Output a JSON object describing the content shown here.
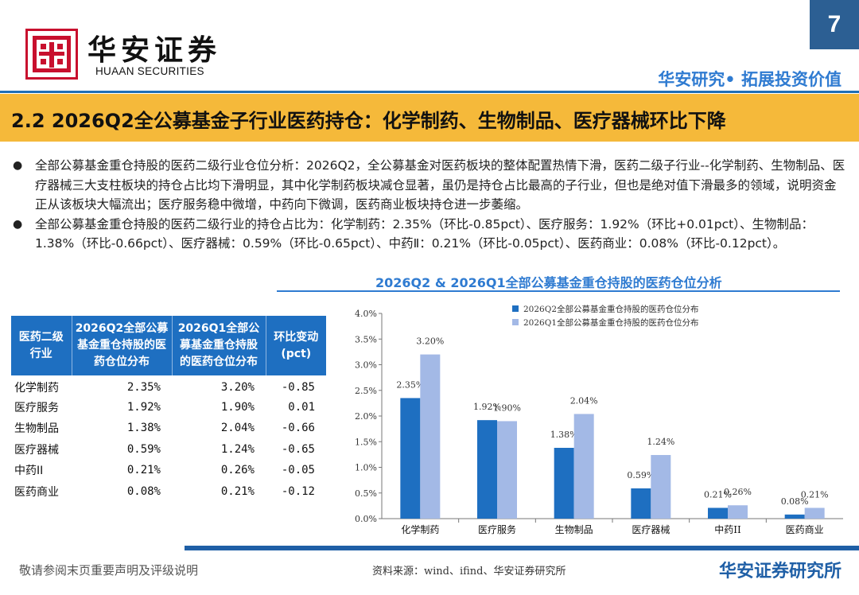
{
  "header": {
    "brand_cn": "华安证券",
    "brand_en": "HUAAN SECURITIES",
    "page_number": "7",
    "slogan": "华安研究• 拓展投资价值"
  },
  "title": "2.2 2026Q2全公募基金子行业医药持仓：化学制药、生物制品、医疗器械环比下降",
  "bullets": [
    "全部公募基金重仓持股的医药二级行业仓位分析：2026Q2，全公募基金对医药板块的整体配置热情下滑，医药二级子行业--化学制药、生物制品、医疗器械三大支柱板块的持仓占比均下滑明显，其中化学制药板块减仓显著，虽仍是持仓占比最高的子行业，但也是绝对值下滑最多的领域，说明资金正从该板块大幅流出；医疗服务稳中微增，中药向下微调，医药商业板块持仓进一步萎缩。",
    "全部公募基金重仓持股的医药二级行业的持仓占比为：化学制药：2.35%（环比-0.85pct）、医疗服务：1.92%（环比+0.01pct）、生物制品：1.38%（环比-0.66pct）、医疗器械：0.59%（环比-0.65pct）、中药Ⅱ：0.21%（环比-0.05pct）、医药商业：0.08%（环比-0.12pct）。"
  ],
  "chart_title": "2026Q2 & 2026Q1全部公募基金重仓持股的医药仓位分析",
  "table": {
    "headers": [
      "医药二级行业",
      "2026Q2全部公募基金重仓持股的医药仓位分布",
      "2026Q1全部公募基金重仓持股的医药仓位分布",
      "环比变动(pct)"
    ],
    "rows": [
      [
        "化学制药",
        "2.35%",
        "3.20%",
        "-0.85"
      ],
      [
        "医疗服务",
        "1.92%",
        "1.90%",
        "0.01"
      ],
      [
        "生物制品",
        "1.38%",
        "2.04%",
        "-0.66"
      ],
      [
        "医疗器械",
        "0.59%",
        "1.24%",
        "-0.65"
      ],
      [
        "中药II",
        "0.21%",
        "0.26%",
        "-0.05"
      ],
      [
        "医药商业",
        "0.08%",
        "0.21%",
        "-0.12"
      ]
    ]
  },
  "chart_data": {
    "type": "bar",
    "categories": [
      "化学制药",
      "医疗服务",
      "生物制品",
      "医疗器械",
      "中药II",
      "医药商业"
    ],
    "series": [
      {
        "name": "2026Q2全部公募基金重仓持股的医药仓位分布",
        "values": [
          2.35,
          1.92,
          1.38,
          0.59,
          0.21,
          0.08
        ],
        "labels": [
          "2.35%",
          "1.92%",
          "1.38%",
          "0.59%",
          "0.21%",
          "0.08%"
        ],
        "color": "#1e6fc1"
      },
      {
        "name": "2026Q1全部公募基金重仓持股的医药仓位分布",
        "values": [
          3.2,
          1.9,
          2.04,
          1.24,
          0.26,
          0.21
        ],
        "labels": [
          "3.20%",
          "1.90%",
          "2.04%",
          "1.24%",
          "0.26%",
          "0.21%"
        ],
        "color": "#a3b9e6"
      }
    ],
    "y_ticks": [
      "0.0%",
      "0.5%",
      "1.0%",
      "1.5%",
      "2.0%",
      "2.5%",
      "3.0%",
      "3.5%",
      "4.0%"
    ],
    "ylim": [
      0,
      4.0
    ],
    "grid": false,
    "legend_position": "top-right"
  },
  "footer": {
    "disclaimer": "敬请参阅末页重要声明及评级说明",
    "source": "资料来源：wind、ifind、华安证券研究所",
    "org": "华安证券研究所"
  }
}
